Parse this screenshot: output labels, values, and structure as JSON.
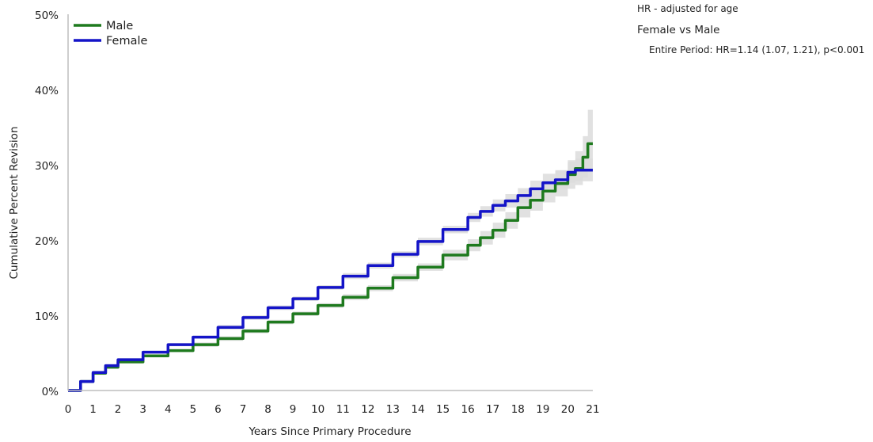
{
  "chart_data": {
    "type": "line",
    "xlabel": "Years Since Primary Procedure",
    "ylabel": "Cumulative Percent Revision",
    "xlim": [
      0,
      21
    ],
    "ylim": [
      0,
      50
    ],
    "x_ticks": [
      "0",
      "1",
      "2",
      "3",
      "4",
      "5",
      "6",
      "7",
      "8",
      "9",
      "10",
      "11",
      "12",
      "13",
      "14",
      "15",
      "16",
      "17",
      "18",
      "19",
      "20",
      "21"
    ],
    "y_ticks": [
      {
        "value": 0,
        "label": "0%"
      },
      {
        "value": 10,
        "label": "10%"
      },
      {
        "value": 20,
        "label": "20%"
      },
      {
        "value": 30,
        "label": "30%"
      },
      {
        "value": 40,
        "label": "40%"
      },
      {
        "value": 50,
        "label": "50%"
      }
    ],
    "grid": false,
    "legend_position": "top-left",
    "confidence_band_color": "#dcdcdc",
    "series": [
      {
        "name": "Male",
        "color": "#1e7a1e",
        "x": [
          0,
          0.5,
          1,
          1.5,
          2,
          3,
          4,
          5,
          6,
          7,
          8,
          9,
          10,
          11,
          12,
          13,
          14,
          15,
          16,
          16.5,
          17,
          17.5,
          18,
          18.5,
          19,
          19.5,
          20,
          20.3,
          20.6,
          20.8,
          21
        ],
        "y": [
          0,
          1.2,
          2.3,
          3.1,
          3.8,
          4.6,
          5.3,
          6.1,
          6.9,
          7.9,
          9.1,
          10.2,
          11.3,
          12.4,
          13.6,
          15.0,
          16.4,
          18.0,
          19.3,
          20.3,
          21.3,
          22.6,
          24.3,
          25.3,
          26.5,
          27.5,
          28.7,
          29.5,
          31.0,
          32.8,
          32.8
        ],
        "ci_lower": [
          0,
          1.0,
          2.1,
          2.9,
          3.6,
          4.4,
          5.1,
          5.8,
          6.6,
          7.6,
          8.8,
          9.9,
          11.0,
          12.0,
          13.2,
          14.5,
          15.9,
          17.3,
          18.5,
          19.4,
          20.3,
          21.5,
          23.0,
          23.9,
          25.0,
          25.8,
          26.8,
          27.3,
          28.3,
          29.5,
          29.5
        ],
        "ci_upper": [
          0,
          1.4,
          2.5,
          3.3,
          4.0,
          4.8,
          5.5,
          6.4,
          7.2,
          8.2,
          9.4,
          10.5,
          11.6,
          12.8,
          14.0,
          15.5,
          16.9,
          18.7,
          20.1,
          21.2,
          22.3,
          23.7,
          25.6,
          26.7,
          28.0,
          29.2,
          30.6,
          31.8,
          33.8,
          37.3,
          37.3
        ]
      },
      {
        "name": "Female",
        "color": "#1414c8",
        "x": [
          0,
          0.5,
          1,
          1.5,
          2,
          3,
          4,
          5,
          6,
          7,
          8,
          9,
          10,
          11,
          12,
          13,
          14,
          15,
          16,
          16.5,
          17,
          17.5,
          18,
          18.5,
          19,
          19.5,
          20,
          20.3,
          20.6,
          21
        ],
        "y": [
          0,
          1.2,
          2.4,
          3.3,
          4.1,
          5.1,
          6.1,
          7.1,
          8.4,
          9.7,
          11.0,
          12.2,
          13.7,
          15.2,
          16.6,
          18.1,
          19.8,
          21.4,
          23.0,
          23.8,
          24.6,
          25.2,
          25.9,
          26.8,
          27.6,
          28.0,
          29.0,
          29.3,
          29.3,
          29.3
        ],
        "ci_lower": [
          0,
          1.0,
          2.2,
          3.1,
          3.9,
          4.9,
          5.9,
          6.9,
          8.1,
          9.4,
          10.7,
          11.9,
          13.4,
          14.8,
          16.2,
          17.7,
          19.3,
          20.9,
          22.4,
          23.1,
          23.8,
          24.3,
          24.9,
          25.7,
          26.4,
          26.8,
          27.6,
          27.8,
          27.8,
          27.8
        ],
        "ci_upper": [
          0,
          1.4,
          2.6,
          3.5,
          4.3,
          5.3,
          6.3,
          7.3,
          8.7,
          10.0,
          11.3,
          12.5,
          14.0,
          15.6,
          17.0,
          18.5,
          20.3,
          21.9,
          23.6,
          24.5,
          25.4,
          26.1,
          26.9,
          27.9,
          28.8,
          29.3,
          30.4,
          30.8,
          30.8,
          30.8
        ]
      }
    ]
  },
  "hr_panel": {
    "note": "HR - adjusted for age",
    "comparison": "Female vs Male",
    "result": "Entire Period: HR=1.14 (1.07, 1.21), p<0.001"
  }
}
